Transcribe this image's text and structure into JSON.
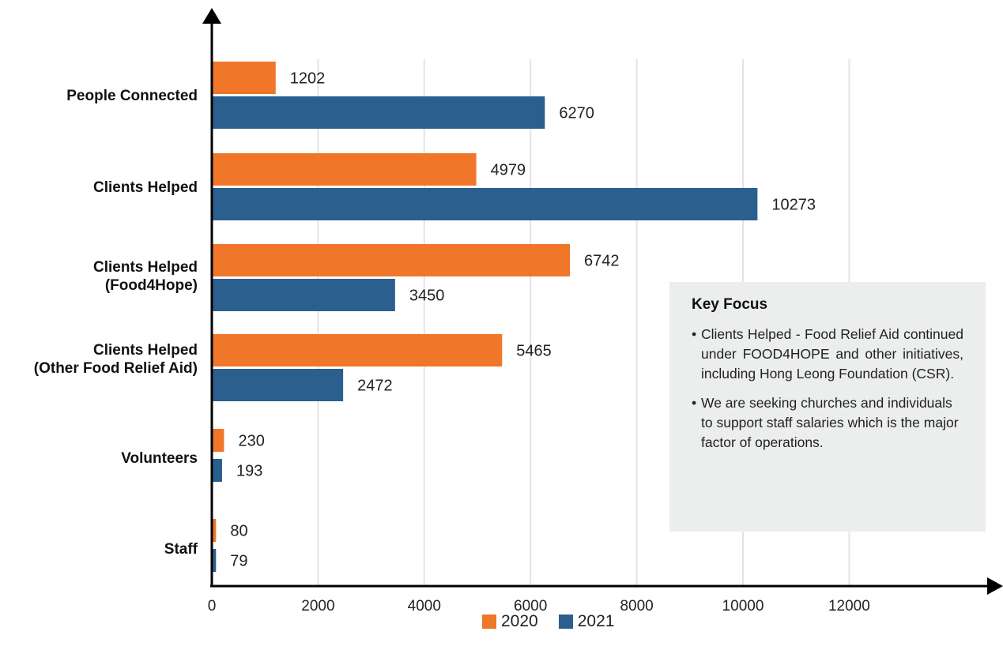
{
  "chart_data": {
    "type": "bar",
    "orientation": "horizontal",
    "categories": [
      [
        "People Connected"
      ],
      [
        "Clients Helped"
      ],
      [
        "Clients Helped",
        "(Food4Hope)"
      ],
      [
        "Clients Helped",
        "(Other Food Relief Aid)"
      ],
      [
        "Volunteers"
      ],
      [
        "Staff"
      ]
    ],
    "series": [
      {
        "name": "2020",
        "color": "#f0762a",
        "values": [
          1202,
          4979,
          6742,
          5465,
          230,
          80
        ]
      },
      {
        "name": "2021",
        "color": "#2b5f8e",
        "values": [
          6270,
          10273,
          3450,
          2472,
          193,
          79
        ]
      }
    ],
    "xticks": [
      "0",
      "2000",
      "4000",
      "6000",
      "8000",
      "10000",
      "12000"
    ],
    "xlim": [
      0,
      14000
    ],
    "grid": true,
    "legend_position": "bottom"
  },
  "key_focus": {
    "title": "Key Focus",
    "items": [
      "Clients Helped - Food Relief Aid continued under FOOD4HOPE and other initiatives, including Hong Leong Foundation (CSR).",
      "We are seeking churches and individuals to support staff salaries which is the major factor of operations."
    ],
    "bullet": "•"
  }
}
